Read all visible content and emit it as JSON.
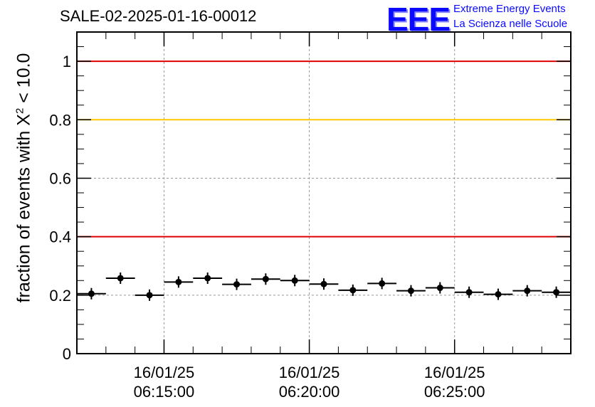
{
  "title": "SALE-02-2025-01-16-00012",
  "logo": {
    "mark": "EEE",
    "line1": "Extreme Energy Events",
    "line2": "La Scienza nelle Scuole",
    "color": "#0a0aff"
  },
  "chart_data": {
    "type": "scatter",
    "title": "SALE-02-2025-01-16-00012",
    "ylabel_prefix": "fraction of events with X",
    "ylabel_sup": "2",
    "ylabel_suffix": " < 10.0",
    "ylim": [
      0,
      1.1
    ],
    "yticks": [
      {
        "value": 0,
        "label": "0"
      },
      {
        "value": 0.2,
        "label": "0.2"
      },
      {
        "value": 0.4,
        "label": "0.4"
      },
      {
        "value": 0.6,
        "label": "0.6"
      },
      {
        "value": 0.8,
        "label": "0.8"
      },
      {
        "value": 1.0,
        "label": "1"
      }
    ],
    "xlim": [
      "06:12:00",
      "06:29:00"
    ],
    "xticks": [
      {
        "time": "06:15:00",
        "date": "16/01/25",
        "label": "06:15:00"
      },
      {
        "time": "06:20:00",
        "date": "16/01/25",
        "label": "06:20:00"
      },
      {
        "time": "06:25:00",
        "date": "16/01/25",
        "label": "06:25:00"
      }
    ],
    "grid": true,
    "reference_lines": [
      {
        "y": 1.0,
        "color": "#e00000"
      },
      {
        "y": 0.8,
        "color": "#ffc800"
      },
      {
        "y": 0.4,
        "color": "#e00000"
      }
    ],
    "points": [
      {
        "x": "06:12:30",
        "y": 0.205
      },
      {
        "x": "06:13:30",
        "y": 0.258
      },
      {
        "x": "06:14:30",
        "y": 0.2
      },
      {
        "x": "06:15:30",
        "y": 0.245
      },
      {
        "x": "06:16:30",
        "y": 0.258
      },
      {
        "x": "06:17:30",
        "y": 0.237
      },
      {
        "x": "06:18:30",
        "y": 0.255
      },
      {
        "x": "06:19:30",
        "y": 0.25
      },
      {
        "x": "06:20:30",
        "y": 0.238
      },
      {
        "x": "06:21:30",
        "y": 0.217
      },
      {
        "x": "06:22:30",
        "y": 0.24
      },
      {
        "x": "06:23:30",
        "y": 0.215
      },
      {
        "x": "06:24:30",
        "y": 0.225
      },
      {
        "x": "06:25:30",
        "y": 0.21
      },
      {
        "x": "06:26:30",
        "y": 0.203
      },
      {
        "x": "06:27:30",
        "y": 0.215
      },
      {
        "x": "06:28:30",
        "y": 0.21
      }
    ]
  }
}
